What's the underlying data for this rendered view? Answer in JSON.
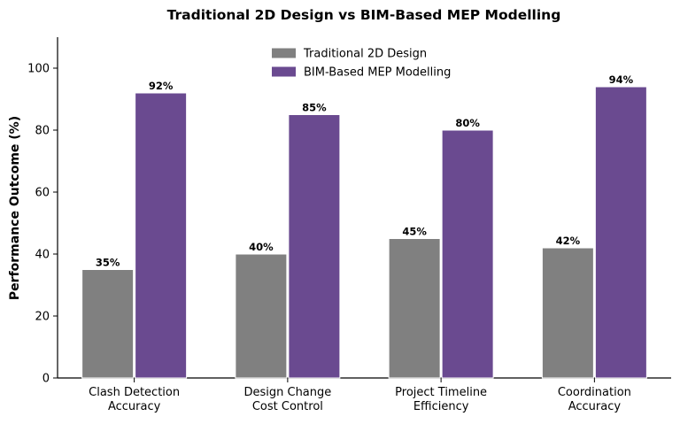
{
  "chart_data": {
    "type": "bar",
    "title": "Traditional 2D Design vs BIM-Based MEP Modelling",
    "xlabel": "",
    "ylabel": "Performance Outcome (%)",
    "ylim": [
      0,
      110
    ],
    "yticks": [
      "0",
      "20",
      "40",
      "60",
      "80",
      "100"
    ],
    "categories": [
      [
        "Clash Detection",
        "Accuracy"
      ],
      [
        "Design Change",
        "Cost Control"
      ],
      [
        "Project Timeline",
        "Efficiency"
      ],
      [
        "Coordination",
        "Accuracy"
      ]
    ],
    "series": [
      {
        "name": "Traditional 2D Design",
        "values": [
          35,
          40,
          45,
          42
        ],
        "labels": [
          "35%",
          "40%",
          "45%",
          "42%"
        ],
        "color": "#808080"
      },
      {
        "name": "BIM-Based MEP Modelling",
        "values": [
          92,
          85,
          80,
          94
        ],
        "labels": [
          "92%",
          "85%",
          "80%",
          "94%"
        ],
        "color": "#6a4a90"
      }
    ],
    "grid": false,
    "legend_position": "top-center"
  }
}
